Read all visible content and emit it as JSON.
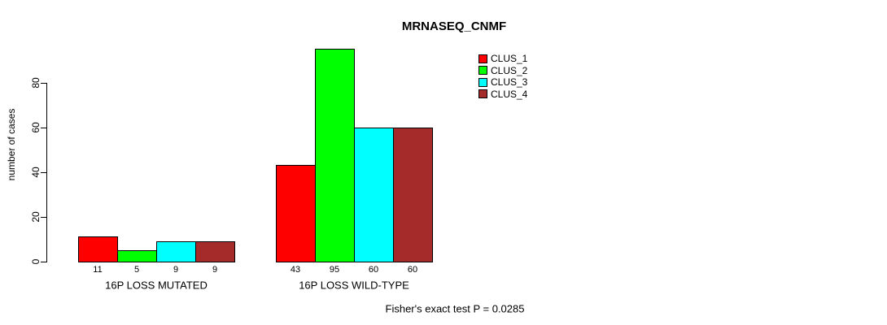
{
  "title": "MRNASEQ_CNMF",
  "ylabel": "number of cases",
  "footer": "Fisher's exact test P = 0.0285",
  "chart_data": {
    "type": "bar",
    "title": "MRNASEQ_CNMF",
    "xlabel": "",
    "ylabel": "number of cases",
    "categories": [
      "16P LOSS MUTATED",
      "16P LOSS WILD-TYPE"
    ],
    "series": [
      {
        "name": "CLUS_1",
        "color": "#ff0000",
        "values": [
          11,
          43
        ]
      },
      {
        "name": "CLUS_2",
        "color": "#00ff00",
        "values": [
          5,
          95
        ]
      },
      {
        "name": "CLUS_3",
        "color": "#00ffff",
        "values": [
          9,
          60
        ]
      },
      {
        "name": "CLUS_4",
        "color": "#a52a2a",
        "values": [
          9,
          60
        ]
      }
    ],
    "yticks": [
      0,
      20,
      40,
      60,
      80
    ],
    "ylim": [
      0,
      95
    ],
    "grid": false,
    "value_labels_shown": true,
    "legend_position": "top-right",
    "annotation": "Fisher's exact test P = 0.0285"
  }
}
